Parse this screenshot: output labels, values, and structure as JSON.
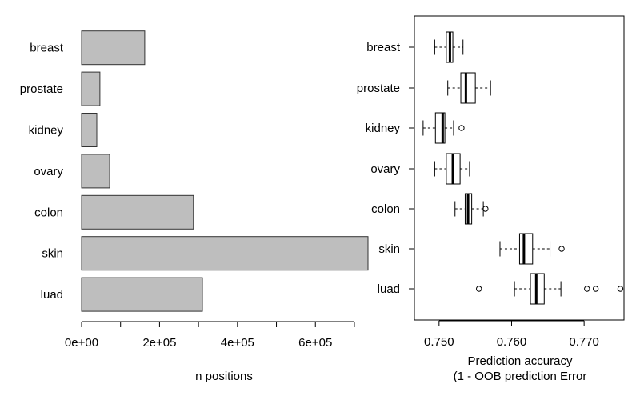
{
  "chart_data": [
    {
      "type": "bar",
      "orientation": "horizontal",
      "categories": [
        "breast",
        "prostate",
        "kidney",
        "ovary",
        "colon",
        "skin",
        "luad"
      ],
      "values": [
        162000,
        47000,
        39000,
        72000,
        287000,
        735000,
        310000
      ],
      "xlabel": "n positions",
      "xlim": [
        0,
        735000
      ],
      "xticks": [
        0,
        200000,
        400000,
        600000
      ],
      "xtick_labels": [
        "0e+00",
        "2e+05",
        "4e+05",
        "6e+05"
      ],
      "minor_ticks": [
        100000,
        300000,
        500000,
        700000
      ],
      "bar_color": "#bebebe",
      "grid": false
    },
    {
      "type": "boxplot",
      "orientation": "horizontal",
      "categories": [
        "breast",
        "prostate",
        "kidney",
        "ovary",
        "colon",
        "skin",
        "luad"
      ],
      "boxes": [
        {
          "whisker_low": 0.7494,
          "q1": 0.751,
          "median": 0.7515,
          "q3": 0.7519,
          "whisker_high": 0.7533,
          "outliers": []
        },
        {
          "whisker_low": 0.7512,
          "q1": 0.753,
          "median": 0.7537,
          "q3": 0.755,
          "whisker_high": 0.7571,
          "outliers": []
        },
        {
          "whisker_low": 0.7478,
          "q1": 0.7495,
          "median": 0.7505,
          "q3": 0.7508,
          "whisker_high": 0.752,
          "outliers": [
            0.7531
          ]
        },
        {
          "whisker_low": 0.7494,
          "q1": 0.751,
          "median": 0.7519,
          "q3": 0.7529,
          "whisker_high": 0.7542,
          "outliers": []
        },
        {
          "whisker_low": 0.7522,
          "q1": 0.7536,
          "median": 0.754,
          "q3": 0.7545,
          "whisker_high": 0.7561,
          "outliers": [
            0.7564
          ]
        },
        {
          "whisker_low": 0.7584,
          "q1": 0.7611,
          "median": 0.7617,
          "q3": 0.7629,
          "whisker_high": 0.7653,
          "outliers": [
            0.7669
          ]
        },
        {
          "whisker_low": 0.7604,
          "q1": 0.7626,
          "median": 0.7634,
          "q3": 0.7645,
          "whisker_high": 0.7668,
          "outliers": [
            0.7555,
            0.7704,
            0.7716,
            0.775
          ]
        }
      ],
      "xlabel_line1": "Prediction accuracy",
      "xlabel_line2": "(1 - OOB prediction Error",
      "xlim": [
        0.7466,
        0.7755
      ],
      "xticks": [
        0.75,
        0.76,
        0.77
      ],
      "xtick_labels": [
        "0.750",
        "0.760",
        "0.770"
      ],
      "grid": false
    }
  ]
}
